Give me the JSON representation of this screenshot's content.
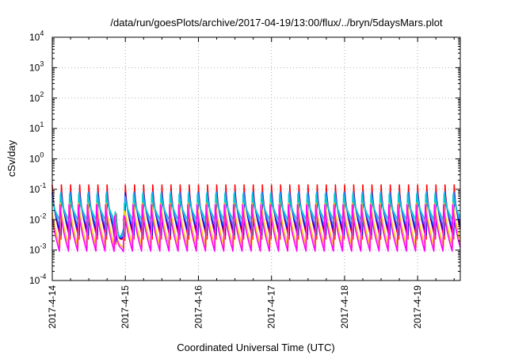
{
  "chart_data": {
    "type": "line",
    "title": "/data/run/goesPlots/archive/2017-04-19/13:00/flux/../bryn/5daysMars.plot",
    "xlabel": "Coordinated Universal Time (UTC)",
    "ylabel": "cSv/day",
    "y_scale": "log",
    "ylim": [
      0.0001,
      10000
    ],
    "y_ticks": [
      {
        "base": "10",
        "exp": "-4",
        "value": 0.0001
      },
      {
        "base": "10",
        "exp": "-3",
        "value": 0.001
      },
      {
        "base": "10",
        "exp": "-2",
        "value": 0.01
      },
      {
        "base": "10",
        "exp": "-1",
        "value": 0.1
      },
      {
        "base": "10",
        "exp": "0",
        "value": 1
      },
      {
        "base": "10",
        "exp": "1",
        "value": 10
      },
      {
        "base": "10",
        "exp": "2",
        "value": 100
      },
      {
        "base": "10",
        "exp": "3",
        "value": 1000
      },
      {
        "base": "10",
        "exp": "4",
        "value": 10000
      }
    ],
    "x_ticks": [
      "2017-4-14",
      "2017-4-15",
      "2017-4-16",
      "2017-4-17",
      "2017-4-18",
      "2017-4-19"
    ],
    "xlim": [
      "2017-04-14T00:00",
      "2017-04-19T14:00"
    ],
    "grid": true,
    "pulse_period_hours": 3,
    "series": [
      {
        "color": "#ff0000",
        "peak": 0.14,
        "trough": 0.002
      },
      {
        "color": "#0000ff",
        "peak": 0.13,
        "trough": 0.003
      },
      {
        "color": "#3399ff",
        "peak": 0.11,
        "trough": 0.005
      },
      {
        "color": "#00cccc",
        "peak": 0.07,
        "trough": 0.009
      },
      {
        "color": "#ffcc00",
        "peak": 0.06,
        "trough": 0.0012
      },
      {
        "color": "#ff00ff",
        "peak": 0.045,
        "trough": 0.00085
      }
    ],
    "dip": {
      "from": "2017-04-14T20:00",
      "to": "2017-04-15T00:00",
      "min": 0.0008
    }
  }
}
